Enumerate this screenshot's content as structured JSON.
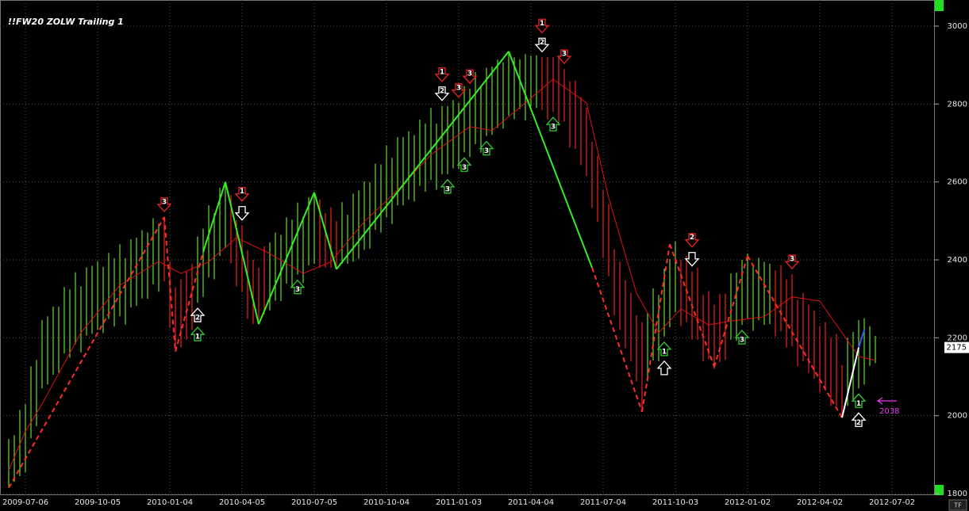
{
  "chart_data": {
    "type": "range-bar",
    "title": "!!FW20 ZOLW Trailing 1",
    "categories": [
      null,
      null,
      null,
      "2009-07-06",
      null,
      null,
      null,
      null,
      null,
      null,
      null,
      null,
      null,
      null,
      null,
      null,
      "2009-10-05",
      null,
      null,
      null,
      null,
      null,
      null,
      null,
      null,
      null,
      null,
      null,
      null,
      "2010-01-04",
      null,
      null,
      null,
      null,
      null,
      null,
      null,
      null,
      null,
      null,
      null,
      null,
      "2010-04-05",
      null,
      null,
      null,
      null,
      null,
      null,
      null,
      null,
      null,
      null,
      null,
      null,
      "2010-07-05",
      null,
      null,
      null,
      null,
      null,
      null,
      null,
      null,
      null,
      null,
      null,
      null,
      "2010-10-04",
      null,
      null,
      null,
      null,
      null,
      null,
      null,
      null,
      null,
      null,
      null,
      null,
      "2011-01-03",
      null,
      null,
      null,
      null,
      null,
      null,
      null,
      null,
      null,
      null,
      null,
      null,
      "2011-04-04",
      null,
      null,
      null,
      null,
      null,
      null,
      null,
      null,
      null,
      null,
      null,
      null,
      "2011-07-04",
      null,
      null,
      null,
      null,
      null,
      null,
      null,
      null,
      null,
      null,
      null,
      null,
      "2011-10-03",
      null,
      null,
      null,
      null,
      null,
      null,
      null,
      null,
      null,
      null,
      null,
      null,
      "2012-01-02",
      null,
      null,
      null,
      null,
      null,
      null,
      null,
      null,
      null,
      null,
      null,
      null,
      "2012-04-02",
      null,
      null,
      null,
      null,
      null,
      null,
      null,
      null,
      null,
      null,
      null,
      null,
      "2012-07-02"
    ],
    "high": [
      1940,
      1950,
      2015,
      2030,
      2127,
      2143,
      2245,
      2255,
      2280,
      2280,
      2330,
      2324,
      2368,
      2332,
      2381,
      2385,
      2396,
      2382,
      2418,
      2404,
      2440,
      2404,
      2453,
      2457,
      2476,
      2470,
      2507,
      2493,
      2510,
      2395,
      2330,
      2350,
      2370,
      2390,
      2460,
      2480,
      2540,
      2520,
      2585,
      2600,
      2566,
      2502,
      2488,
      2424,
      2400,
      2380,
      2435,
      2445,
      2470,
      2464,
      2509,
      2503,
      2547,
      2511,
      2561,
      2573,
      2555,
      2520,
      2535,
      2500,
      2548,
      2516,
      2570,
      2578,
      2601,
      2599,
      2647,
      2645,
      2694,
      2662,
      2715,
      2715,
      2730,
      2720,
      2760,
      2750,
      2790,
      2750,
      2795,
      2795,
      2810,
      2803,
      2846,
      2839,
      2882,
      2845,
      2893,
      2896,
      2914,
      2907,
      2935,
      2920,
      2915,
      2928,
      2924,
      2925,
      2920,
      2920,
      2920,
      2920,
      2890,
      2858,
      2860,
      2818,
      2790,
      2703,
      2667,
      2580,
      2543,
      2427,
      2395,
      2348,
      2315,
      2258,
      2240,
      2263,
      2327,
      2310,
      2378,
      2402,
      2447,
      2400,
      2410,
      2370,
      2380,
      2310,
      2320,
      2285,
      2312,
      2313,
      2365,
      2367,
      2400,
      2416,
      2388,
      2405,
      2395,
      2390,
      2373,
      2387,
      2350,
      2363,
      2297,
      2315,
      2285,
      2270,
      2230,
      2240,
      2200,
      2210,
      2130,
      2200,
      2215,
      2245,
      2250,
      2230,
      2205,
      null,
      null,
      null
    ],
    "low": [
      1815,
      1830,
      1845,
      1855,
      1942,
      1973,
      2070,
      2080,
      2105,
      2110,
      2160,
      2149,
      2183,
      2162,
      2206,
      2210,
      2221,
      2212,
      2248,
      2229,
      2255,
      2234,
      2278,
      2282,
      2301,
      2300,
      2337,
      2318,
      2345,
      2225,
      2165,
      2175,
      2195,
      2220,
      2290,
      2305,
      2355,
      2350,
      2410,
      2430,
      2391,
      2332,
      2318,
      2249,
      2235,
      2245,
      2260,
      2270,
      2295,
      2294,
      2339,
      2328,
      2362,
      2341,
      2386,
      2390,
      2380,
      2380,
      2380,
      2375,
      2390,
      2390,
      2395,
      2403,
      2426,
      2429,
      2477,
      2470,
      2509,
      2492,
      2540,
      2540,
      2555,
      2550,
      2590,
      2575,
      2605,
      2580,
      2620,
      2620,
      2635,
      2633,
      2676,
      2664,
      2697,
      2675,
      2718,
      2721,
      2739,
      2737,
      2770,
      2761,
      2787,
      2758,
      2794,
      2790,
      2785,
      2760,
      2780,
      2745,
      2755,
      2688,
      2685,
      2643,
      2615,
      2533,
      2497,
      2405,
      2358,
      2257,
      2220,
      2173,
      2140,
      2088,
      2010,
      2088,
      2142,
      2140,
      2203,
      2227,
      2265,
      2230,
      2240,
      2195,
      2195,
      2140,
      2145,
      2120,
      2137,
      2143,
      2195,
      2192,
      2233,
      2250,
      2218,
      2245,
      2233,
      2235,
      2203,
      2217,
      2175,
      2178,
      2127,
      2140,
      2110,
      2095,
      2060,
      2070,
      2025,
      2025,
      1995,
      2025,
      2040,
      2070,
      2080,
      2128,
      2135,
      null,
      null,
      null
    ],
    "colors": [
      "#6d3",
      "#6d3",
      "#6d3",
      "#6d3",
      "#6d3",
      "#6d3",
      "#6d3",
      "#6d3",
      "#6d3",
      "#6d3",
      "#6d3",
      "#6d3",
      "#6d3",
      "#6d3",
      "#6d3",
      "#6d3",
      "#6d3",
      "#6d3",
      "#6d3",
      "#6d3",
      "#6d3",
      "#6d3",
      "#6d3",
      "#6d3",
      "#6d3",
      "#6d3",
      "#6d3",
      "#6d3",
      "#e22",
      "#e22",
      "#e22",
      "#e22",
      "#e22",
      "#e22",
      "#6d3",
      "#6d3",
      "#6d3",
      "#6d3",
      "#6d3",
      "#6d3",
      "#e22",
      "#e22",
      "#e22",
      "#e22",
      "#e22",
      "#e22",
      "#e22",
      "#6d3",
      "#6d3",
      "#6d3",
      "#6d3",
      "#6d3",
      "#6d3",
      "#6d3",
      "#6d3",
      "#6d3",
      "#e22",
      "#e22",
      "#e22",
      "#e22",
      "#6d3",
      "#6d3",
      "#6d3",
      "#6d3",
      "#6d3",
      "#6d3",
      "#6d3",
      "#6d3",
      "#6d3",
      "#6d3",
      "#6d3",
      "#6d3",
      "#6d3",
      "#6d3",
      "#6d3",
      "#6d3",
      "#6d3",
      "#6d3",
      "#6d3",
      "#6d3",
      "#6d3",
      "#6d3",
      "#6d3",
      "#6d3",
      "#6d3",
      "#6d3",
      "#6d3",
      "#6d3",
      "#6d3",
      "#6d3",
      "#6d3",
      "#6d3",
      "#6d3",
      "#6d3",
      "#6d3",
      "#6d3",
      "#e22",
      "#e22",
      "#e22",
      "#e22",
      "#e22",
      "#e22",
      "#e22",
      "#e22",
      "#e22",
      "#e22",
      "#e22",
      "#e22",
      "#e22",
      "#e22",
      "#e22",
      "#e22",
      "#e22",
      "#e22",
      "#e22",
      "#6d3",
      "#6d3",
      "#6d3",
      "#6d3",
      "#6d3",
      "#6d3",
      "#e22",
      "#e22",
      "#e22",
      "#e22",
      "#e22",
      "#e22",
      "#e22",
      "#e22",
      "#e22",
      "#6d3",
      "#6d3",
      "#6d3",
      "#6d3",
      "#6d3",
      "#6d3",
      "#6d3",
      "#6d3",
      "#e22",
      "#e22",
      "#e22",
      "#e22",
      "#e22",
      "#e22",
      "#e22",
      "#e22",
      "#e22",
      "#e22",
      "#e22",
      "#e22",
      "#e22",
      "#6d3",
      "#6d3",
      "#6d3",
      "#6d3",
      "#6d3",
      "#6d3",
      null,
      null,
      null
    ],
    "moving_average": {
      "color": "#e01010",
      "x": [
        0,
        3,
        6,
        13,
        20,
        27,
        31,
        36,
        41,
        47,
        53,
        58,
        64,
        70,
        76,
        83,
        87,
        93,
        98,
        104,
        108,
        113,
        117,
        121,
        126,
        130,
        136,
        141,
        146,
        150,
        153,
        156
      ],
      "values": [
        1860,
        1960,
        2030,
        2213,
        2335,
        2396,
        2365,
        2395,
        2457,
        2416,
        2365,
        2395,
        2498,
        2579,
        2670,
        2742,
        2732,
        2803,
        2864,
        2803,
        2559,
        2315,
        2213,
        2274,
        2233,
        2243,
        2254,
        2305,
        2294,
        2213,
        2152,
        2142
      ]
    },
    "zigzag": [
      {
        "x": [
          0,
          28
        ],
        "values": [
          1815,
          2510
        ],
        "color": "#ff2a2a",
        "dashed": true
      },
      {
        "x": [
          28,
          30
        ],
        "values": [
          2510,
          2165
        ],
        "color": "#ff2a2a",
        "dashed": true
      },
      {
        "x": [
          30,
          35
        ],
        "values": [
          2165,
          2420
        ],
        "color": "#ff2a2a",
        "dashed": true
      },
      {
        "x": [
          35,
          39
        ],
        "values": [
          2420,
          2600
        ],
        "color": "#33ee22",
        "dashed": false
      },
      {
        "x": [
          39,
          45
        ],
        "values": [
          2600,
          2235
        ],
        "color": "#33ee22",
        "dashed": false
      },
      {
        "x": [
          45,
          55
        ],
        "values": [
          2235,
          2573
        ],
        "color": "#33ee22",
        "dashed": false
      },
      {
        "x": [
          55,
          59
        ],
        "values": [
          2573,
          2376
        ],
        "color": "#33ee22",
        "dashed": false
      },
      {
        "x": [
          59,
          90
        ],
        "values": [
          2376,
          2935
        ],
        "color": "#33ee22",
        "dashed": false
      },
      {
        "x": [
          90,
          105
        ],
        "values": [
          2935,
          2380
        ],
        "color": "#33ee22",
        "dashed": false
      },
      {
        "x": [
          105,
          114
        ],
        "values": [
          2380,
          2010
        ],
        "color": "#ff2a2a",
        "dashed": true
      },
      {
        "x": [
          114,
          119
        ],
        "values": [
          2010,
          2440
        ],
        "color": "#ff2a2a",
        "dashed": true
      },
      {
        "x": [
          119,
          127
        ],
        "values": [
          2440,
          2125
        ],
        "color": "#ff2a2a",
        "dashed": true
      },
      {
        "x": [
          127,
          133
        ],
        "values": [
          2125,
          2410
        ],
        "color": "#ff2a2a",
        "dashed": true
      },
      {
        "x": [
          133,
          150
        ],
        "values": [
          2410,
          1995
        ],
        "color": "#ff2a2a",
        "dashed": true
      },
      {
        "x": [
          150,
          153
        ],
        "values": [
          1995,
          2175
        ],
        "color": "#ffffff",
        "dashed": false
      },
      {
        "x": [
          153,
          154
        ],
        "values": [
          2175,
          2220
        ],
        "color": "#3355ff",
        "dashed": false
      }
    ],
    "markers": [
      {
        "x": 28,
        "direction": "down",
        "color": "#e22",
        "label": "3"
      },
      {
        "x": 42,
        "direction": "down",
        "color": "#fff"
      },
      {
        "x": 42,
        "direction": "down",
        "color": "#e22",
        "label": "1"
      },
      {
        "x": 78,
        "direction": "down",
        "color": "#fff",
        "label": "2"
      },
      {
        "x": 78,
        "direction": "down",
        "color": "#e22",
        "label": "1"
      },
      {
        "x": 81,
        "direction": "down",
        "color": "#e22",
        "label": "3"
      },
      {
        "x": 83,
        "direction": "down",
        "color": "#e22",
        "label": "3"
      },
      {
        "x": 96,
        "direction": "down",
        "color": "#fff",
        "label": "2"
      },
      {
        "x": 96,
        "direction": "down",
        "color": "#e22",
        "label": "1"
      },
      {
        "x": 100,
        "direction": "down",
        "color": "#e22",
        "label": "3"
      },
      {
        "x": 123,
        "direction": "down",
        "color": "#fff"
      },
      {
        "x": 123,
        "direction": "down",
        "color": "#e22",
        "label": "2"
      },
      {
        "x": 141,
        "direction": "down",
        "color": "#e22",
        "label": "3"
      },
      {
        "x": 34,
        "direction": "up",
        "color": "#fff",
        "label": "2"
      },
      {
        "x": 34,
        "direction": "up",
        "color": "#3c3",
        "label": "1"
      },
      {
        "x": 52,
        "direction": "up",
        "color": "#3c3",
        "label": "3"
      },
      {
        "x": 79,
        "direction": "up",
        "color": "#3c3",
        "label": "3"
      },
      {
        "x": 82,
        "direction": "up",
        "color": "#3c3",
        "label": "3"
      },
      {
        "x": 86,
        "direction": "up",
        "color": "#3c3",
        "label": "3"
      },
      {
        "x": 98,
        "direction": "up",
        "color": "#3c3",
        "label": "3"
      },
      {
        "x": 118,
        "direction": "up",
        "color": "#3c3",
        "label": "1"
      },
      {
        "x": 118,
        "direction": "up",
        "color": "#fff"
      },
      {
        "x": 132,
        "direction": "up",
        "color": "#3c3",
        "label": "3"
      },
      {
        "x": 153,
        "direction": "up",
        "color": "#3c3",
        "label": "1"
      },
      {
        "x": 153,
        "direction": "up",
        "color": "#fff",
        "label": "2"
      }
    ],
    "last_price": 2175,
    "annotation": {
      "value": 2038,
      "color": "#ee33ee"
    },
    "corner_label": "TF",
    "ylim": [
      1796,
      3067
    ],
    "yticks": [
      1800,
      2000,
      2200,
      2400,
      2600,
      2800,
      3000
    ],
    "grid": true
  }
}
